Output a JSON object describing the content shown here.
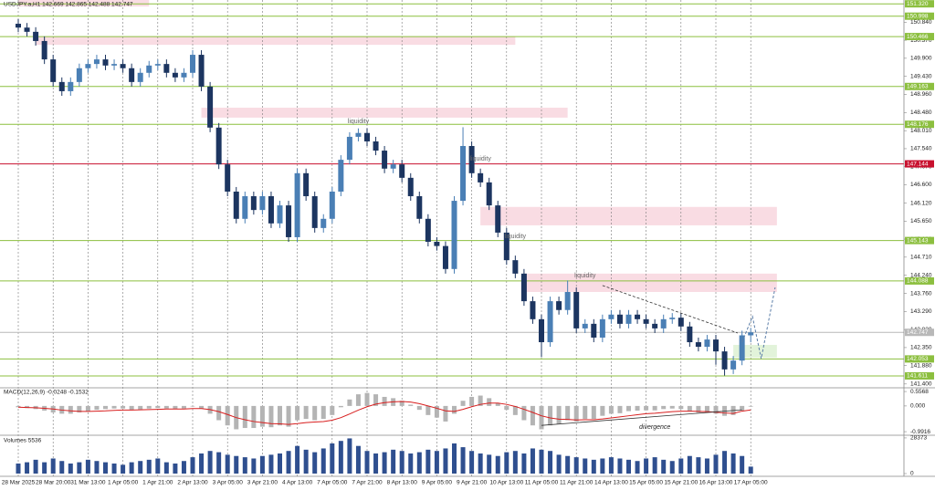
{
  "chart_data": [
    {
      "type": "candlestick",
      "title": "USDJPY.a,H1 142.669 142.865 142.488 142.747",
      "categories": [
        "28 Mar 2025",
        null,
        null,
        null,
        "28 Mar 20:00",
        null,
        null,
        null,
        "31 Mar 13:00",
        null,
        null,
        null,
        "1 Apr 05:00",
        null,
        null,
        null,
        "1 Apr 21:00",
        null,
        null,
        null,
        "2 Apr 13:00",
        null,
        null,
        null,
        "3 Apr 05:00",
        null,
        null,
        null,
        "3 Apr 21:00",
        null,
        null,
        null,
        "4 Apr 13:00",
        null,
        null,
        null,
        "7 Apr 05:00",
        null,
        null,
        null,
        "7 Apr 21:00",
        null,
        null,
        null,
        "8 Apr 13:00",
        null,
        null,
        null,
        "9 Apr 05:00",
        null,
        null,
        null,
        "9 Apr 21:00",
        null,
        null,
        null,
        "10 Apr 13:00",
        null,
        null,
        null,
        "11 Apr 05:00",
        null,
        null,
        null,
        "11 Apr 21:00",
        null,
        null,
        null,
        "14 Apr 13:00",
        null,
        null,
        null,
        "15 Apr 05:00",
        null,
        null,
        null,
        "15 Apr 21:00",
        null,
        null,
        null,
        "16 Apr 13:00",
        null,
        null,
        null,
        "17 Apr 05:00"
      ],
      "open": [
        150.8,
        150.7,
        150.59,
        150.35,
        149.87,
        149.28,
        149.04,
        149.28,
        149.64,
        149.75,
        149.87,
        149.71,
        149.75,
        149.64,
        149.28,
        149.52,
        149.71,
        149.75,
        149.52,
        149.4,
        149.52,
        149.99,
        149.16,
        148.09,
        147.13,
        146.42,
        145.71,
        146.3,
        145.94,
        146.3,
        145.59,
        146.06,
        145.23,
        146.9,
        146.3,
        145.47,
        145.71,
        146.42,
        147.25,
        147.85,
        147.95,
        147.73,
        147.49,
        147.02,
        147.13,
        146.78,
        146.3,
        145.71,
        145.11,
        145.0,
        144.4,
        146.18,
        147.61,
        146.9,
        146.66,
        146.06,
        145.35,
        144.63,
        144.28,
        143.56,
        143.09,
        142.49,
        143.56,
        143.33,
        143.8,
        142.85,
        142.97,
        142.61,
        143.09,
        143.21,
        142.97,
        143.21,
        143.09,
        142.97,
        142.85,
        143.09,
        143.13,
        142.9,
        142.49,
        142.37,
        142.56,
        142.25,
        141.78,
        142.01,
        142.669
      ],
      "high": [
        150.92,
        150.82,
        150.71,
        150.47,
        149.99,
        149.4,
        149.4,
        149.76,
        149.87,
        149.99,
        149.99,
        149.87,
        149.87,
        149.76,
        149.64,
        149.83,
        149.87,
        149.87,
        149.64,
        149.64,
        150.11,
        150.11,
        149.28,
        148.21,
        147.25,
        146.54,
        146.42,
        146.42,
        146.42,
        146.42,
        146.18,
        146.18,
        147.02,
        147.02,
        146.42,
        145.83,
        146.54,
        147.37,
        147.97,
        148.07,
        148.07,
        147.85,
        147.61,
        147.25,
        147.25,
        146.9,
        146.42,
        145.83,
        145.23,
        145.12,
        146.3,
        148.1,
        147.73,
        147.02,
        146.78,
        146.18,
        145.47,
        144.75,
        144.4,
        143.68,
        143.21,
        143.68,
        143.68,
        144.1,
        143.92,
        143.09,
        143.09,
        143.21,
        143.33,
        143.33,
        143.33,
        143.33,
        143.21,
        143.09,
        143.21,
        143.25,
        143.25,
        143.02,
        142.61,
        142.68,
        142.68,
        142.37,
        142.13,
        142.79,
        142.865
      ],
      "low": [
        150.58,
        150.47,
        150.23,
        149.75,
        149.16,
        148.92,
        148.92,
        149.16,
        149.52,
        149.63,
        149.59,
        149.59,
        149.52,
        149.16,
        149.16,
        149.4,
        149.59,
        149.4,
        149.28,
        149.28,
        149.4,
        149.04,
        147.97,
        147.01,
        146.3,
        145.59,
        145.59,
        145.82,
        145.82,
        145.47,
        145.47,
        145.11,
        145.11,
        146.18,
        145.35,
        145.35,
        145.59,
        146.3,
        147.13,
        147.73,
        147.61,
        147.37,
        146.9,
        146.9,
        146.66,
        146.18,
        145.59,
        144.99,
        144.88,
        144.28,
        144.28,
        146.06,
        146.78,
        146.54,
        145.94,
        145.23,
        144.51,
        144.16,
        143.44,
        142.97,
        142.1,
        142.37,
        143.21,
        143.21,
        142.73,
        142.73,
        142.49,
        142.49,
        142.97,
        142.85,
        142.85,
        142.97,
        142.85,
        142.73,
        142.73,
        142.97,
        142.78,
        142.37,
        142.25,
        142.25,
        141.9,
        141.62,
        141.66,
        141.89,
        142.488
      ],
      "close": [
        150.7,
        150.59,
        150.35,
        149.87,
        149.28,
        149.04,
        149.28,
        149.64,
        149.75,
        149.87,
        149.71,
        149.75,
        149.64,
        149.28,
        149.52,
        149.71,
        149.75,
        149.52,
        149.4,
        149.52,
        149.99,
        149.16,
        148.09,
        147.13,
        146.42,
        145.71,
        146.3,
        145.94,
        146.3,
        145.59,
        146.06,
        145.23,
        146.9,
        146.3,
        145.47,
        145.71,
        146.42,
        147.25,
        147.85,
        147.95,
        147.73,
        147.49,
        147.02,
        147.13,
        146.78,
        146.3,
        145.71,
        145.11,
        145.0,
        144.4,
        146.18,
        147.61,
        146.9,
        146.66,
        146.06,
        145.35,
        144.63,
        144.28,
        143.56,
        143.09,
        142.49,
        143.56,
        143.33,
        143.8,
        142.85,
        142.97,
        142.61,
        143.09,
        143.21,
        142.97,
        143.21,
        143.09,
        142.97,
        142.85,
        143.09,
        143.13,
        142.9,
        142.49,
        142.37,
        142.56,
        142.25,
        141.78,
        142.01,
        142.669,
        142.747
      ],
      "bull_color": "#4a7fb5",
      "bear_color": "#1c3560",
      "xgrid": true,
      "ylim": [
        141.3,
        151.42
      ],
      "yticks": [
        {
          "value": 150.84,
          "label": "150.840"
        },
        {
          "value": 150.37,
          "label": "150.370"
        },
        {
          "value": 149.9,
          "label": "149.900"
        },
        {
          "value": 149.43,
          "label": "149.430"
        },
        {
          "value": 148.96,
          "label": "148.960"
        },
        {
          "value": 148.48,
          "label": "148.480"
        },
        {
          "value": 148.01,
          "label": "148.010"
        },
        {
          "value": 147.54,
          "label": "147.540"
        },
        {
          "value": 147.07,
          "label": "147.070"
        },
        {
          "value": 146.6,
          "label": "146.600"
        },
        {
          "value": 146.12,
          "label": "146.120"
        },
        {
          "value": 145.65,
          "label": "145.650"
        },
        {
          "value": 145.18,
          "label": "145.180"
        },
        {
          "value": 144.71,
          "label": "144.710"
        },
        {
          "value": 144.24,
          "label": "144.240"
        },
        {
          "value": 143.76,
          "label": "143.760"
        },
        {
          "value": 143.29,
          "label": "143.290"
        },
        {
          "value": 142.82,
          "label": "142.820"
        },
        {
          "value": 142.35,
          "label": "142.350"
        },
        {
          "value": 141.88,
          "label": "141.880"
        },
        {
          "value": 141.4,
          "label": "141.400"
        }
      ],
      "levels": [
        {
          "value": 151.32,
          "label": "151.320",
          "color": "#8cbf3f"
        },
        {
          "value": 150.998,
          "color": "#8cbf3f"
        },
        {
          "value": 150.466,
          "color": "#8cbf3f"
        },
        {
          "value": 149.163,
          "color": "#8cbf3f"
        },
        {
          "value": 148.176,
          "color": "#8cbf3f"
        },
        {
          "value": 147.144,
          "color": "#c8102e"
        },
        {
          "value": 145.143,
          "color": "#8cbf3f"
        },
        {
          "value": 144.088,
          "color": "#8cbf3f"
        },
        {
          "value": 142.747,
          "color": "#b8b8b8"
        },
        {
          "value": 142.053,
          "color": "#8cbf3f"
        },
        {
          "value": 141.611,
          "color": "#8cbf3f"
        }
      ],
      "zones": [
        {
          "from": 0,
          "to": 15,
          "low": 151.25,
          "high": 151.42,
          "color": "#f9dce3"
        },
        {
          "from": 2,
          "to": 57,
          "low": 150.25,
          "high": 150.47,
          "color": "#f9dce3"
        },
        {
          "from": 21,
          "to": 63,
          "low": 148.35,
          "high": 148.61,
          "color": "#f9dce3"
        },
        {
          "from": 53,
          "to": 87,
          "low": 145.54,
          "high": 146.02,
          "color": "#f9dce3"
        },
        {
          "from": 58,
          "to": 87,
          "low": 143.8,
          "high": 144.28,
          "color": "#f9dce3"
        },
        {
          "from": 82,
          "to": 87,
          "low": 142.09,
          "high": 142.42,
          "color": "#e2f3da"
        }
      ],
      "annotations": [
        {
          "text": "liquidity",
          "x": 39,
          "y": 148.25
        },
        {
          "text": "liquidity",
          "x": 53,
          "y": 147.27
        },
        {
          "text": "liquidity",
          "x": 57,
          "y": 145.25
        },
        {
          "text": "liquidity",
          "x": 65,
          "y": 144.23
        }
      ],
      "trendline": {
        "x": [
          67,
          82.5
        ],
        "y": [
          143.97,
          142.73
        ]
      },
      "projection": {
        "x": [
          83,
          84.2,
          85.2,
          86.8
        ],
        "y": [
          142.49,
          143.16,
          142.06,
          143.92
        ]
      }
    },
    {
      "type": "bar",
      "title": "MACD(12,26,9) -0.0248 -0.1532",
      "values": [
        -0.05,
        -0.08,
        -0.12,
        -0.18,
        -0.25,
        -0.3,
        -0.3,
        -0.25,
        -0.2,
        -0.15,
        -0.12,
        -0.1,
        -0.1,
        -0.15,
        -0.14,
        -0.1,
        -0.08,
        -0.1,
        -0.12,
        -0.1,
        -0.02,
        -0.1,
        -0.3,
        -0.55,
        -0.75,
        -0.9,
        -0.85,
        -0.85,
        -0.8,
        -0.82,
        -0.75,
        -0.8,
        -0.55,
        -0.5,
        -0.55,
        -0.5,
        -0.35,
        -0.05,
        0.25,
        0.45,
        0.5,
        0.45,
        0.35,
        0.3,
        0.2,
        0.05,
        -0.15,
        -0.35,
        -0.45,
        -0.6,
        -0.3,
        0.2,
        0.35,
        0.4,
        0.3,
        0.1,
        -0.15,
        -0.35,
        -0.55,
        -0.75,
        -0.9,
        -0.75,
        -0.7,
        -0.55,
        -0.6,
        -0.5,
        -0.5,
        -0.38,
        -0.3,
        -0.28,
        -0.2,
        -0.18,
        -0.17,
        -0.17,
        -0.12,
        -0.1,
        -0.12,
        -0.2,
        -0.25,
        -0.25,
        -0.3,
        -0.38,
        -0.35,
        -0.18,
        -0.0248
      ],
      "signal": [
        -0.05,
        -0.06,
        -0.07,
        -0.09,
        -0.12,
        -0.16,
        -0.19,
        -0.21,
        -0.21,
        -0.2,
        -0.19,
        -0.17,
        -0.16,
        -0.16,
        -0.15,
        -0.14,
        -0.13,
        -0.12,
        -0.12,
        -0.12,
        -0.1,
        -0.1,
        -0.14,
        -0.22,
        -0.33,
        -0.45,
        -0.53,
        -0.6,
        -0.64,
        -0.68,
        -0.69,
        -0.71,
        -0.68,
        -0.64,
        -0.62,
        -0.6,
        -0.55,
        -0.45,
        -0.31,
        -0.16,
        -0.03,
        0.07,
        0.13,
        0.16,
        0.17,
        0.15,
        0.09,
        0.0,
        -0.09,
        -0.19,
        -0.21,
        -0.13,
        -0.03,
        0.06,
        0.11,
        0.11,
        0.06,
        -0.02,
        -0.13,
        -0.25,
        -0.38,
        -0.46,
        -0.51,
        -0.52,
        -0.54,
        -0.53,
        -0.53,
        -0.5,
        -0.46,
        -0.42,
        -0.38,
        -0.34,
        -0.3,
        -0.28,
        -0.25,
        -0.22,
        -0.2,
        -0.2,
        -0.21,
        -0.22,
        -0.24,
        -0.27,
        -0.29,
        -0.2,
        -0.1532
      ],
      "color": "#b4b4b4",
      "signal_color": "#d81e1e",
      "ylim": [
        -1.13,
        0.7
      ],
      "yticks": [
        0.5568,
        {
          "value": 0,
          "label": "0.000"
        },
        -0.9916
      ],
      "annotations": [
        {
          "text": "divergence",
          "x": 73,
          "y": -0.82
        }
      ],
      "trendline": {
        "x": [
          60,
          83
        ],
        "y": [
          -0.75,
          -0.15
        ]
      }
    },
    {
      "type": "bar",
      "title": "Volumes 5536",
      "values": [
        8000,
        9000,
        11000,
        9000,
        12000,
        10000,
        8000,
        9000,
        11000,
        10000,
        9000,
        8000,
        7000,
        9000,
        10000,
        11000,
        12000,
        9000,
        8000,
        10000,
        13000,
        16000,
        18000,
        17000,
        15000,
        14000,
        13000,
        12000,
        14000,
        15000,
        16000,
        18000,
        22000,
        19000,
        17000,
        20000,
        24000,
        26000,
        28000,
        22000,
        18000,
        16000,
        17000,
        19000,
        18000,
        16000,
        17000,
        19000,
        18000,
        20000,
        24000,
        21000,
        18000,
        16000,
        15000,
        14000,
        17000,
        18000,
        16000,
        20000,
        19000,
        18000,
        15000,
        14000,
        13000,
        12000,
        11000,
        12000,
        13000,
        12000,
        11000,
        10000,
        12000,
        13000,
        11000,
        10000,
        12000,
        14000,
        13000,
        12000,
        15000,
        18000,
        16000,
        14000,
        5536
      ],
      "color": "#2f4f8f",
      "ylim": [
        0,
        30500
      ],
      "yticks": [
        28373,
        0
      ]
    }
  ]
}
